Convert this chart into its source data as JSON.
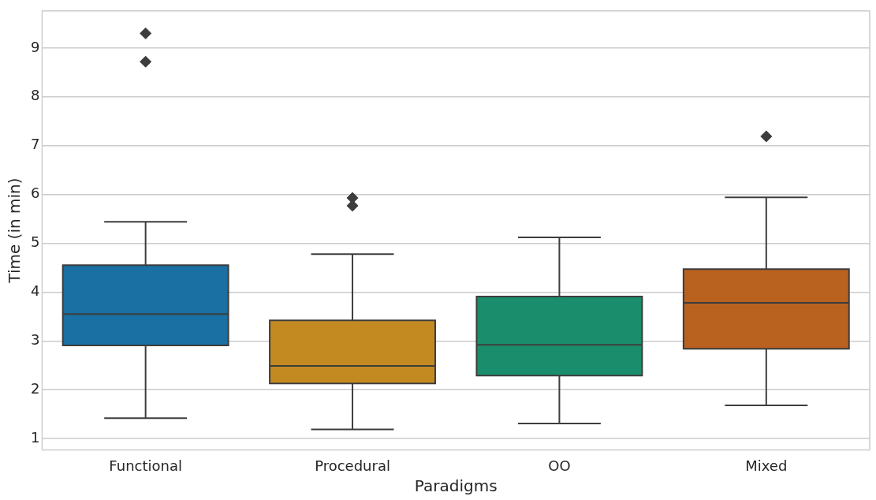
{
  "chart_data": {
    "type": "box",
    "xlabel": "Paradigms",
    "ylabel": "Time (in min)",
    "categories": [
      "Functional",
      "Procedural",
      "OO",
      "Mixed"
    ],
    "colors": [
      "#1a6fa3",
      "#c48a22",
      "#1a8e6c",
      "#b9611f"
    ],
    "boxes": [
      {
        "low": 1.42,
        "q1": 2.91,
        "median": 3.55,
        "q3": 4.55,
        "high": 5.44,
        "outliers": [
          9.3,
          8.72
        ]
      },
      {
        "low": 1.19,
        "q1": 2.13,
        "median": 2.49,
        "q3": 3.42,
        "high": 4.78,
        "outliers": [
          5.93,
          5.77
        ]
      },
      {
        "low": 1.31,
        "q1": 2.29,
        "median": 2.92,
        "q3": 3.91,
        "high": 5.12
      },
      {
        "low": 1.68,
        "q1": 2.84,
        "median": 3.78,
        "q3": 4.47,
        "high": 5.94,
        "outliers": [
          7.19
        ]
      }
    ],
    "ylim": [
      0.77,
      9.76
    ],
    "yticks": [
      1,
      2,
      3,
      4,
      5,
      6,
      7,
      8,
      9
    ],
    "grid": "y",
    "legend": false,
    "marker": "diamond"
  }
}
